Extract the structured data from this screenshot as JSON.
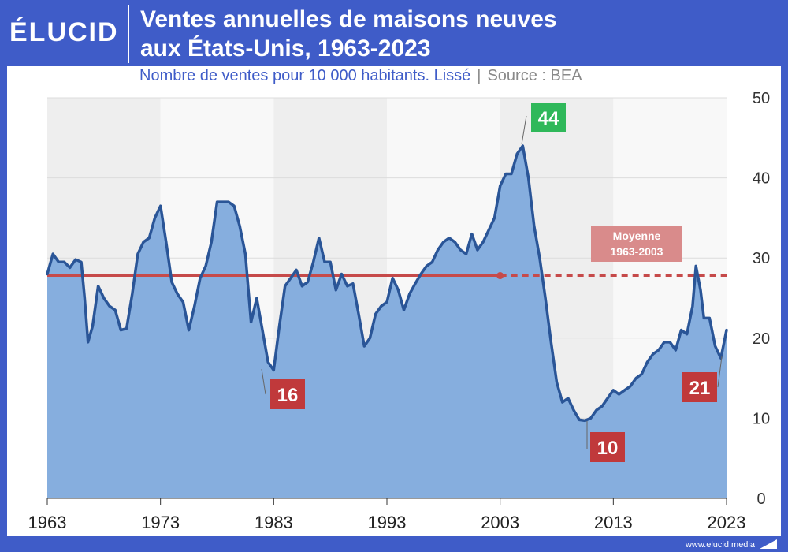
{
  "brand": {
    "logo": "ÉLUCID",
    "url": "www.elucid.media"
  },
  "title": {
    "line1": "Ventes annuelles de maisons neuves",
    "line2": "aux États-Unis, 1963-2023"
  },
  "subtitle": {
    "text": "Nombre de ventes pour 10 000 habitants. Lissé",
    "separator": "|",
    "source": "Source : BEA"
  },
  "colors": {
    "brand": "#3f5cc8",
    "line": "#2a5597",
    "area": "#86aede",
    "average": "#c64a4a",
    "label_red": "#c0393b",
    "label_green": "#2fb85a"
  },
  "chart_data": {
    "type": "area",
    "title": "Ventes annuelles de maisons neuves aux États-Unis, 1963-2023",
    "ylabel": "Nombre de ventes pour 10 000 habitants",
    "xlim": [
      1963,
      2023
    ],
    "ylim": [
      0,
      50
    ],
    "x_ticks": [
      "1963",
      "1973",
      "1983",
      "1993",
      "2003",
      "2013",
      "2023"
    ],
    "y_ticks": [
      "0",
      "10",
      "20",
      "30",
      "40",
      "50"
    ],
    "series": [
      {
        "name": "Ventes de maisons neuves",
        "points": [
          [
            1963.0,
            28
          ],
          [
            1963.5,
            30.5
          ],
          [
            1964.0,
            29.5
          ],
          [
            1964.5,
            29.5
          ],
          [
            1965.0,
            28.8
          ],
          [
            1965.5,
            29.8
          ],
          [
            1966.0,
            29.5
          ],
          [
            1966.3,
            25
          ],
          [
            1966.6,
            19.5
          ],
          [
            1967.0,
            21.5
          ],
          [
            1967.5,
            26.5
          ],
          [
            1968.0,
            25
          ],
          [
            1968.5,
            24
          ],
          [
            1969.0,
            23.5
          ],
          [
            1969.5,
            21
          ],
          [
            1970.0,
            21.2
          ],
          [
            1970.5,
            25.5
          ],
          [
            1971.0,
            30.5
          ],
          [
            1971.5,
            32
          ],
          [
            1972.0,
            32.5
          ],
          [
            1972.5,
            35
          ],
          [
            1973.0,
            36.5
          ],
          [
            1973.5,
            32
          ],
          [
            1974.0,
            27
          ],
          [
            1974.5,
            25.5
          ],
          [
            1975.0,
            24.5
          ],
          [
            1975.5,
            21
          ],
          [
            1976.0,
            24
          ],
          [
            1976.5,
            27.5
          ],
          [
            1977.0,
            29
          ],
          [
            1977.5,
            32
          ],
          [
            1978.0,
            37
          ],
          [
            1978.5,
            37
          ],
          [
            1979.0,
            37
          ],
          [
            1979.5,
            36.5
          ],
          [
            1980.0,
            34
          ],
          [
            1980.5,
            30.5
          ],
          [
            1981.0,
            22
          ],
          [
            1981.5,
            25
          ],
          [
            1982.0,
            21
          ],
          [
            1982.5,
            17
          ],
          [
            1983.0,
            16
          ],
          [
            1983.5,
            21.5
          ],
          [
            1984.0,
            26.5
          ],
          [
            1984.5,
            27.5
          ],
          [
            1985.0,
            28.5
          ],
          [
            1985.5,
            26.5
          ],
          [
            1986.0,
            27
          ],
          [
            1986.5,
            29.5
          ],
          [
            1987.0,
            32.5
          ],
          [
            1987.5,
            29.5
          ],
          [
            1988.0,
            29.5
          ],
          [
            1988.5,
            26
          ],
          [
            1989.0,
            28
          ],
          [
            1989.5,
            26.5
          ],
          [
            1990.0,
            26.8
          ],
          [
            1990.5,
            23
          ],
          [
            1991.0,
            19
          ],
          [
            1991.5,
            20
          ],
          [
            1992.0,
            23
          ],
          [
            1992.5,
            24
          ],
          [
            1993.0,
            24.5
          ],
          [
            1993.5,
            27.5
          ],
          [
            1994.0,
            26
          ],
          [
            1994.5,
            23.5
          ],
          [
            1995.0,
            25.5
          ],
          [
            1995.5,
            26.8
          ],
          [
            1996.0,
            28
          ],
          [
            1996.5,
            29
          ],
          [
            1997.0,
            29.5
          ],
          [
            1997.5,
            31
          ],
          [
            1998.0,
            32
          ],
          [
            1998.5,
            32.5
          ],
          [
            1999.0,
            32
          ],
          [
            1999.5,
            31
          ],
          [
            2000.0,
            30.5
          ],
          [
            2000.5,
            33
          ],
          [
            2001.0,
            31
          ],
          [
            2001.5,
            32
          ],
          [
            2002.0,
            33.5
          ],
          [
            2002.5,
            35
          ],
          [
            2003.0,
            39
          ],
          [
            2003.5,
            40.5
          ],
          [
            2004.0,
            40.5
          ],
          [
            2004.5,
            43
          ],
          [
            2005.0,
            44
          ],
          [
            2005.5,
            40
          ],
          [
            2006.0,
            34
          ],
          [
            2006.5,
            30
          ],
          [
            2007.0,
            25
          ],
          [
            2007.5,
            19.5
          ],
          [
            2008.0,
            14.5
          ],
          [
            2008.5,
            12
          ],
          [
            2009.0,
            12.5
          ],
          [
            2009.5,
            11
          ],
          [
            2010.0,
            9.8
          ],
          [
            2010.5,
            9.7
          ],
          [
            2011.0,
            10
          ],
          [
            2011.5,
            11
          ],
          [
            2012.0,
            11.5
          ],
          [
            2012.5,
            12.5
          ],
          [
            2013.0,
            13.5
          ],
          [
            2013.5,
            13
          ],
          [
            2014.0,
            13.5
          ],
          [
            2014.5,
            14
          ],
          [
            2015.0,
            15
          ],
          [
            2015.5,
            15.5
          ],
          [
            2016.0,
            17
          ],
          [
            2016.5,
            18
          ],
          [
            2017.0,
            18.5
          ],
          [
            2017.5,
            19.5
          ],
          [
            2018.0,
            19.5
          ],
          [
            2018.5,
            18.5
          ],
          [
            2019.0,
            21
          ],
          [
            2019.5,
            20.5
          ],
          [
            2020.0,
            24
          ],
          [
            2020.3,
            29
          ],
          [
            2020.7,
            26
          ],
          [
            2021.0,
            22.5
          ],
          [
            2021.5,
            22.5
          ],
          [
            2022.0,
            19
          ],
          [
            2022.5,
            17.5
          ],
          [
            2023.0,
            21
          ]
        ]
      }
    ],
    "average": {
      "label_line1": "Moyenne",
      "label_line2": "1963-2003",
      "value": 27.8,
      "range": [
        1963,
        2003
      ]
    },
    "annotations": [
      {
        "text": "44",
        "x": 2005.0,
        "y": 44,
        "style": "green"
      },
      {
        "text": "16",
        "x": 1983.0,
        "y": 16,
        "style": "red"
      },
      {
        "text": "10",
        "x": 2010.0,
        "y": 9.8,
        "style": "red"
      },
      {
        "text": "21",
        "x": 2023.0,
        "y": 21,
        "style": "red"
      }
    ]
  }
}
